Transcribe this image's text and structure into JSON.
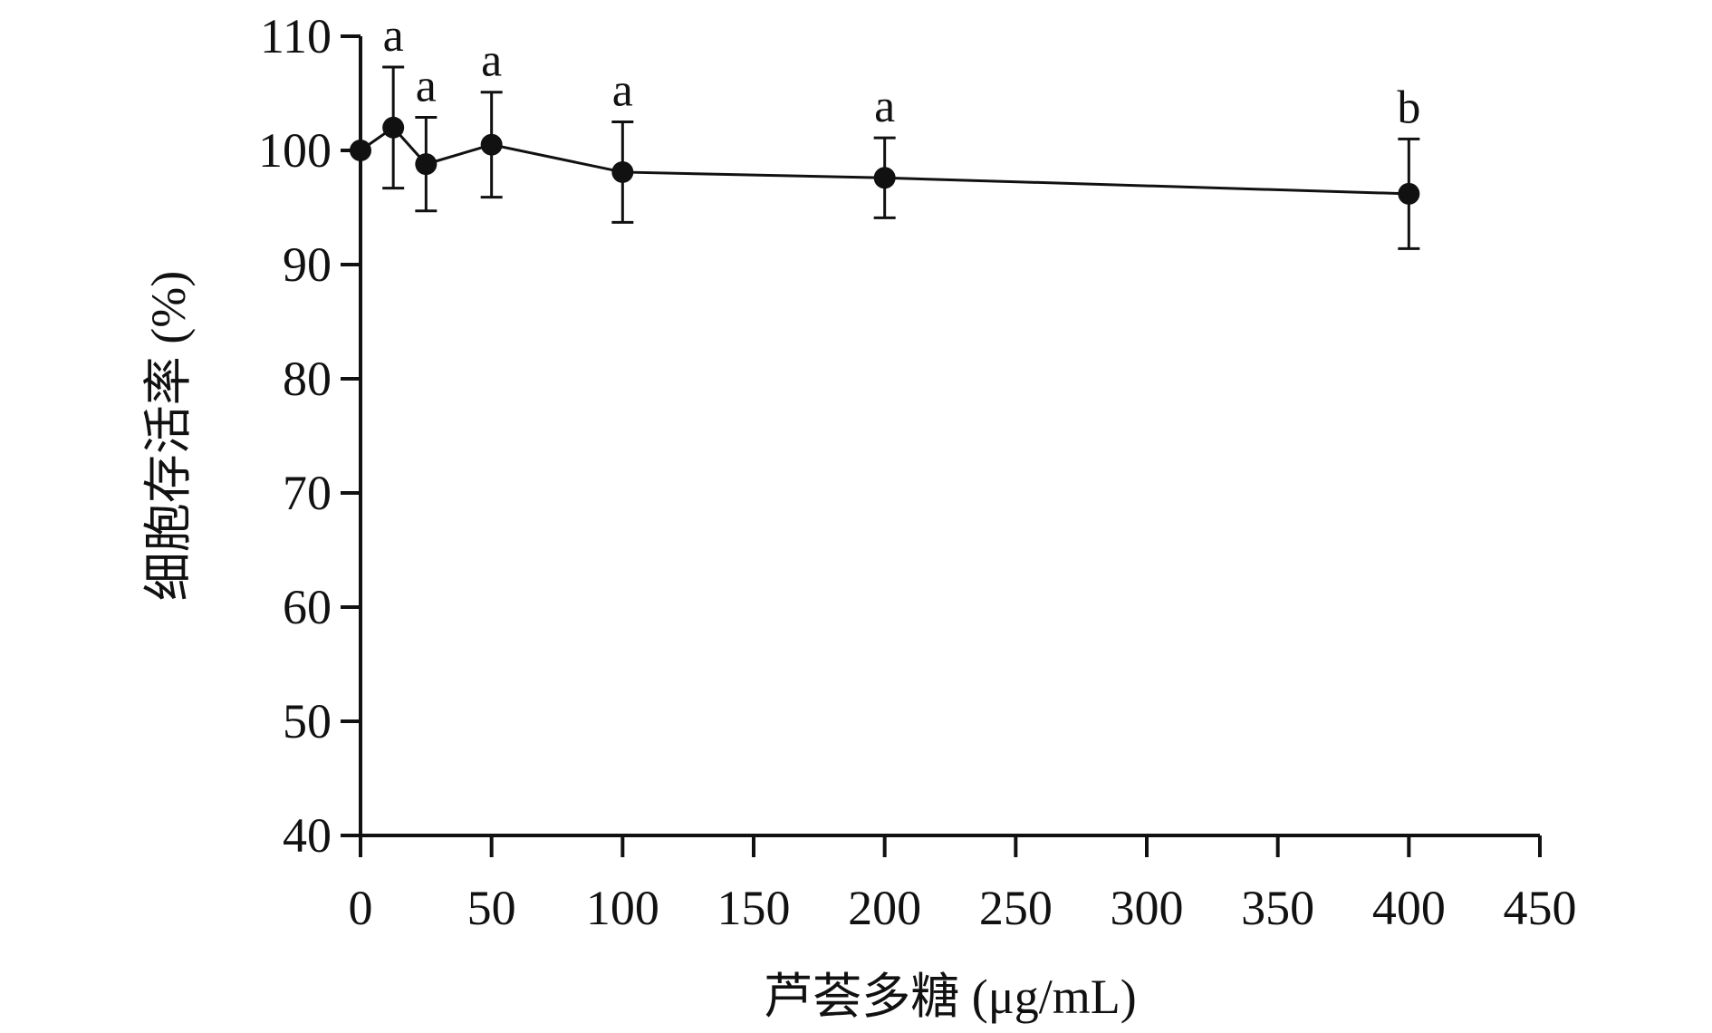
{
  "chart_data": {
    "type": "line",
    "xlabel": "芦荟多糖 (μg/mL)",
    "ylabel": "细胞存活率 (%)",
    "xlim": [
      0,
      450
    ],
    "ylim": [
      40,
      110
    ],
    "x_ticks": [
      0,
      50,
      100,
      150,
      200,
      250,
      300,
      350,
      400,
      450
    ],
    "y_ticks": [
      40,
      50,
      60,
      70,
      80,
      90,
      100,
      110
    ],
    "grid": false,
    "series": [
      {
        "x": [
          0,
          12.5,
          25,
          50,
          100,
          200,
          400
        ],
        "y": [
          100,
          102,
          98.8,
          100.5,
          98.1,
          97.6,
          96.2
        ],
        "error": [
          0,
          5.3,
          4.1,
          4.6,
          4.4,
          3.5,
          4.8
        ],
        "marker": "filled-circle",
        "color": "#111111"
      }
    ],
    "annotations": [
      {
        "x": 12.5,
        "y": 107.3,
        "text": "a"
      },
      {
        "x": 25,
        "y": 102.9,
        "text": "a"
      },
      {
        "x": 50,
        "y": 105.1,
        "text": "a"
      },
      {
        "x": 100,
        "y": 102.5,
        "text": "a"
      },
      {
        "x": 200,
        "y": 101.1,
        "text": "a"
      },
      {
        "x": 400,
        "y": 101.0,
        "text": "b"
      }
    ]
  }
}
